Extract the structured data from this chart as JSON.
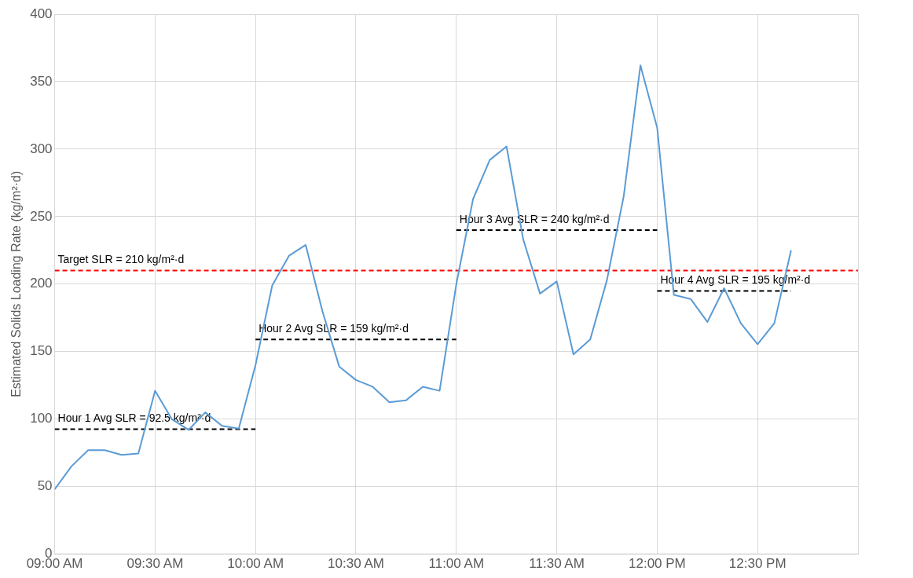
{
  "chart_data": {
    "type": "line",
    "ylabel": "Estimated Solids Loading Rate (kg/m²·d)",
    "xlim": [
      9,
      13
    ],
    "xticks": [
      {
        "value": 9,
        "label": "09:00 AM"
      },
      {
        "value": 9.5,
        "label": "09:30 AM"
      },
      {
        "value": 10,
        "label": "10:00 AM"
      },
      {
        "value": 10.5,
        "label": "10:30 AM"
      },
      {
        "value": 11,
        "label": "11:00 AM"
      },
      {
        "value": 11.5,
        "label": "11:30 AM"
      },
      {
        "value": 12,
        "label": "12:00 PM"
      },
      {
        "value": 12.5,
        "label": "12:30 PM"
      },
      {
        "value": 13,
        "label": null
      }
    ],
    "ylim": [
      0,
      400
    ],
    "yticks": [
      0,
      50,
      100,
      150,
      200,
      250,
      300,
      350,
      400
    ],
    "grid": true,
    "legend": false,
    "marker": "none",
    "x": [
      9,
      9.0833,
      9.1667,
      9.25,
      9.3333,
      9.4167,
      9.5,
      9.5833,
      9.6667,
      9.75,
      9.8333,
      9.9167,
      10,
      10.0833,
      10.1667,
      10.25,
      10.3333,
      10.4167,
      10.5,
      10.5833,
      10.6667,
      10.75,
      10.8333,
      10.9167,
      11,
      11.0833,
      11.1667,
      11.25,
      11.3333,
      11.4167,
      11.5,
      11.5833,
      11.6667,
      11.75,
      11.8333,
      11.9167,
      12,
      12.0833,
      12.1667,
      12.25,
      12.3333,
      12.4167,
      12.5,
      12.5833,
      12.6667
    ],
    "series": [
      {
        "color": "#5b9bd5",
        "line_style": "solid",
        "values": [
          48,
          65,
          77,
          77,
          73.5,
          74.5,
          121,
          100,
          92,
          105,
          95,
          93,
          140,
          199,
          221,
          229,
          180,
          139,
          129,
          124,
          112.5,
          114,
          124,
          121,
          200,
          263,
          292,
          302,
          233,
          193,
          202,
          148,
          159,
          203,
          265,
          362,
          316,
          192,
          189,
          172,
          197,
          171,
          155.5,
          171,
          225
        ]
      },
      {
        "name": "Hour 1 Avg SLR = 92.5 kg/m²·d",
        "color": "#000000",
        "line_style": "dashed",
        "x": [
          9,
          10
        ],
        "values": [
          92.5,
          92.5
        ]
      },
      {
        "name": "Hour 2 Avg SLR = 159 kg/m²·d",
        "color": "#000000",
        "line_style": "dashed",
        "x": [
          10,
          11
        ],
        "values": [
          159,
          159
        ]
      },
      {
        "name": "Hour 3 Avg SLR = 240 kg/m²·d",
        "color": "#000000",
        "line_style": "dashed",
        "x": [
          11,
          12
        ],
        "values": [
          240,
          240
        ]
      },
      {
        "name": "Hour 4 Avg SLR = 195 kg/m²·d",
        "color": "#000000",
        "line_style": "dashed",
        "x": [
          12,
          12.6667
        ],
        "values": [
          195,
          195
        ]
      }
    ],
    "ref_lines": [
      {
        "axis": "y",
        "value": 210,
        "label": "Target SLR = 210 kg/m²·d",
        "color": "#ff0000",
        "line_style": "dashed"
      }
    ]
  }
}
